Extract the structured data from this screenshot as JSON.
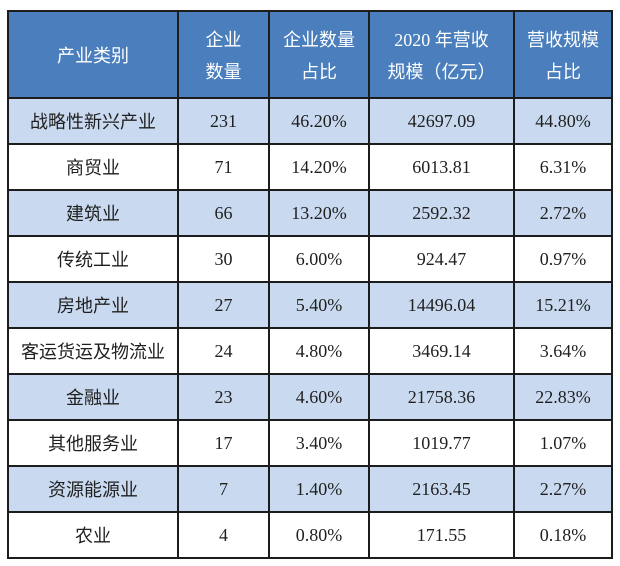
{
  "colors": {
    "header_bg": "#4a7ebc",
    "header_text": "#ffffff",
    "band_row_bg": "#c9daf0",
    "plain_row_bg": "#ffffff",
    "border": "#1c1c1c",
    "cell_text": "#1f1f1f"
  },
  "header_display": {
    "col1": [
      "产业类别"
    ],
    "col2": [
      "企业",
      "数量"
    ],
    "col3": [
      "企业数量",
      "占比"
    ],
    "col4": [
      "2020 年营收",
      "规模（亿元）"
    ],
    "col5": [
      "营收规模",
      "占比"
    ]
  },
  "chart_data": {
    "type": "table",
    "title": "",
    "columns": [
      "产业类别",
      "企业数量",
      "企业数量占比",
      "2020年营收规模（亿元）",
      "营收规模占比"
    ],
    "rows": [
      [
        "战略性新兴产业",
        "231",
        "46.20%",
        "42697.09",
        "44.80%"
      ],
      [
        "商贸业",
        "71",
        "14.20%",
        "6013.81",
        "6.31%"
      ],
      [
        "建筑业",
        "66",
        "13.20%",
        "2592.32",
        "2.72%"
      ],
      [
        "传统工业",
        "30",
        "6.00%",
        "924.47",
        "0.97%"
      ],
      [
        "房地产业",
        "27",
        "5.40%",
        "14496.04",
        "15.21%"
      ],
      [
        "客运货运及物流业",
        "24",
        "4.80%",
        "3469.14",
        "3.64%"
      ],
      [
        "金融业",
        "23",
        "4.60%",
        "21758.36",
        "22.83%"
      ],
      [
        "其他服务业",
        "17",
        "3.40%",
        "1019.77",
        "1.07%"
      ],
      [
        "资源能源业",
        "7",
        "1.40%",
        "2163.45",
        "2.27%"
      ],
      [
        "农业",
        "4",
        "0.80%",
        "171.55",
        "0.18%"
      ]
    ]
  }
}
